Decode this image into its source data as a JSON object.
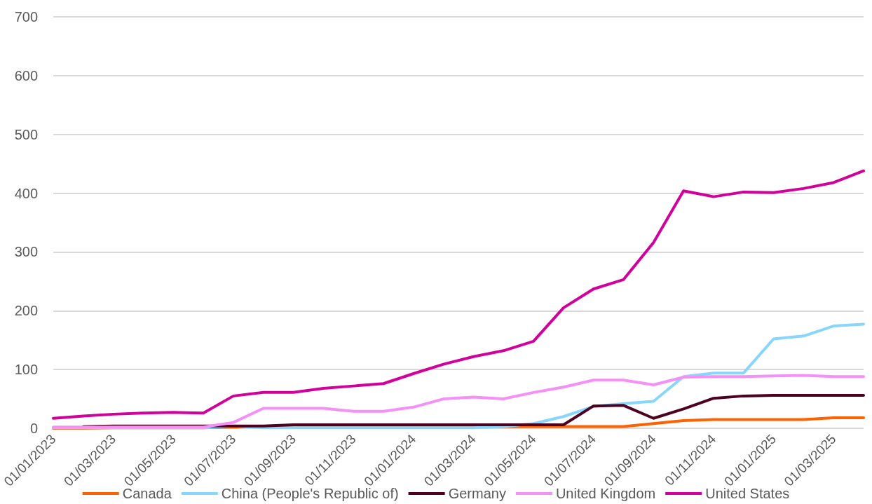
{
  "chart_data": {
    "type": "line",
    "categories": [
      "01/01/2023",
      null,
      "01/03/2023",
      null,
      "01/05/2023",
      null,
      "01/07/2023",
      null,
      "01/09/2023",
      null,
      "01/11/2023",
      null,
      "01/01/2024",
      null,
      "01/03/2024",
      null,
      "01/05/2024",
      null,
      "01/07/2024",
      null,
      "01/09/2024",
      null,
      "01/11/2024",
      null,
      "01/01/2025",
      null,
      "01/03/2025",
      null
    ],
    "series": [
      {
        "name": "Canada",
        "color": "#ff6200",
        "values": [
          0,
          0,
          1,
          1,
          1,
          1,
          2,
          3,
          3,
          3,
          3,
          3,
          3,
          3,
          3,
          3,
          3,
          3,
          3,
          3,
          8,
          13,
          15,
          15,
          15,
          15,
          18,
          18
        ]
      },
      {
        "name": "China (People's Republic of)",
        "color": "#89d6fd",
        "values": [
          1,
          1,
          1,
          1,
          1,
          1,
          4,
          1,
          1,
          1,
          1,
          1,
          1,
          1,
          1,
          3,
          8,
          20,
          37,
          42,
          46,
          88,
          94,
          94,
          152,
          157,
          174,
          177
        ]
      },
      {
        "name": "Germany",
        "color": "#4e0021",
        "values": [
          null,
          3,
          4,
          4,
          4,
          4,
          4,
          4,
          6,
          6,
          6,
          6,
          6,
          6,
          6,
          6,
          6,
          6,
          38,
          39,
          17,
          33,
          51,
          55,
          56,
          56,
          56,
          56
        ]
      },
      {
        "name": "United Kingdom",
        "color": "#f590f7",
        "values": [
          2,
          2,
          2,
          2,
          2,
          2,
          10,
          34,
          34,
          34,
          29,
          29,
          36,
          50,
          53,
          50,
          61,
          70,
          82,
          82,
          74,
          87,
          88,
          88,
          89,
          90,
          88,
          88
        ]
      },
      {
        "name": "United States",
        "color": "#d2009b",
        "values": [
          17,
          21,
          24,
          26,
          27,
          26,
          55,
          61,
          61,
          68,
          72,
          76,
          93,
          109,
          122,
          132,
          148,
          205,
          237,
          253,
          316,
          404,
          394,
          402,
          401,
          408,
          418,
          438
        ]
      }
    ],
    "ylim": [
      0,
      700
    ],
    "yticks": [
      0,
      100,
      200,
      300,
      400,
      500,
      600,
      700
    ],
    "grid": "y",
    "legend": "bottom",
    "marker": "none",
    "line_style": "solid"
  }
}
